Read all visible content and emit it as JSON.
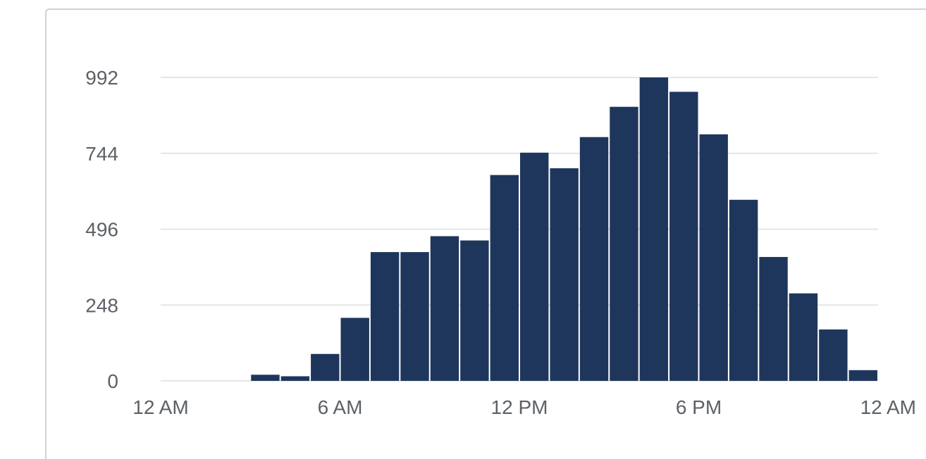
{
  "chart_data": {
    "type": "bar",
    "xlabel": "",
    "ylabel": "",
    "x_tick_labels": [
      "12 AM",
      "6 AM",
      "12 PM",
      "6 PM",
      "12 AM"
    ],
    "y_ticks": [
      0,
      248,
      496,
      744,
      992
    ],
    "y_tick_labels": [
      "0",
      "248",
      "496",
      "744",
      "992"
    ],
    "ylim": [
      0,
      992
    ],
    "grid": true,
    "legend": "none",
    "bar_color": "#1f365c",
    "categories": [
      "0",
      "1",
      "2",
      "3",
      "4",
      "5",
      "6",
      "7",
      "8",
      "9",
      "10",
      "11",
      "12",
      "13",
      "14",
      "15",
      "16",
      "17",
      "18",
      "19",
      "20",
      "21",
      "22",
      "23"
    ],
    "values": [
      0,
      0,
      0,
      20,
      15,
      88,
      206,
      421,
      421,
      473,
      459,
      673,
      746,
      695,
      797,
      896,
      992,
      945,
      806,
      592,
      405,
      286,
      168,
      35
    ]
  }
}
